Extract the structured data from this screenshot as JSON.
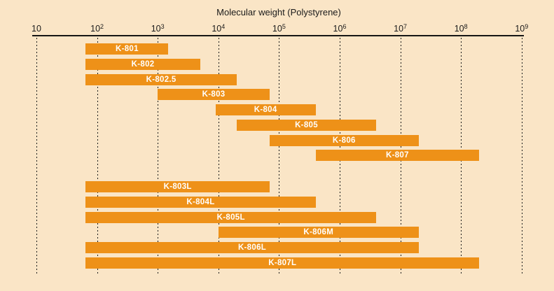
{
  "title": "Molecular weight (Polystyrene)",
  "colors": {
    "background": "#FAE5C6",
    "bar": "#EE9118",
    "bar_label": "#FFFFFF",
    "axis_and_text": "#1A1A1A"
  },
  "axis": {
    "tick_labels": [
      {
        "mantissa": "10",
        "exponent": ""
      },
      {
        "mantissa": "10",
        "exponent": "2"
      },
      {
        "mantissa": "10",
        "exponent": "3"
      },
      {
        "mantissa": "10",
        "exponent": "4"
      },
      {
        "mantissa": "10",
        "exponent": "5"
      },
      {
        "mantissa": "10",
        "exponent": "6"
      },
      {
        "mantissa": "10",
        "exponent": "7"
      },
      {
        "mantissa": "10",
        "exponent": "8"
      },
      {
        "mantissa": "10",
        "exponent": "9"
      }
    ]
  },
  "chart_data": {
    "type": "bar",
    "subtype": "horizontal-range-bars",
    "title": "Molecular weight (Polystyrene)",
    "xlabel": "Molecular weight (Polystyrene)",
    "xscale": "log",
    "xlim": [
      10,
      1000000000
    ],
    "x_ticks": [
      10,
      100,
      1000,
      10000,
      100000,
      1000000,
      10000000,
      100000000,
      1000000000
    ],
    "grid": "vertical-dashed-at-each-decade",
    "legend": "none",
    "bar_color": "#EE9118",
    "groups": [
      {
        "name": "upper-group",
        "bars": [
          {
            "label": "K-801",
            "mw_min": 65,
            "mw_max": 1500
          },
          {
            "label": "K-802",
            "mw_min": 65,
            "mw_max": 5000
          },
          {
            "label": "K-802.5",
            "mw_min": 65,
            "mw_max": 20000
          },
          {
            "label": "K-803",
            "mw_min": 1000,
            "mw_max": 70000
          },
          {
            "label": "K-804",
            "mw_min": 9000,
            "mw_max": 400000
          },
          {
            "label": "K-805",
            "mw_min": 20000,
            "mw_max": 4000000
          },
          {
            "label": "K-806",
            "mw_min": 70000,
            "mw_max": 20000000
          },
          {
            "label": "K-807",
            "mw_min": 400000,
            "mw_max": 200000000
          }
        ]
      },
      {
        "name": "lower-group",
        "bars": [
          {
            "label": "K-803L",
            "mw_min": 65,
            "mw_max": 70000
          },
          {
            "label": "K-804L",
            "mw_min": 65,
            "mw_max": 400000
          },
          {
            "label": "K-805L",
            "mw_min": 65,
            "mw_max": 4000000
          },
          {
            "label": "K-806M",
            "mw_min": 10000,
            "mw_max": 20000000
          },
          {
            "label": "K-806L",
            "mw_min": 65,
            "mw_max": 20000000
          },
          {
            "label": "K-807L",
            "mw_min": 65,
            "mw_max": 200000000
          }
        ]
      }
    ]
  }
}
